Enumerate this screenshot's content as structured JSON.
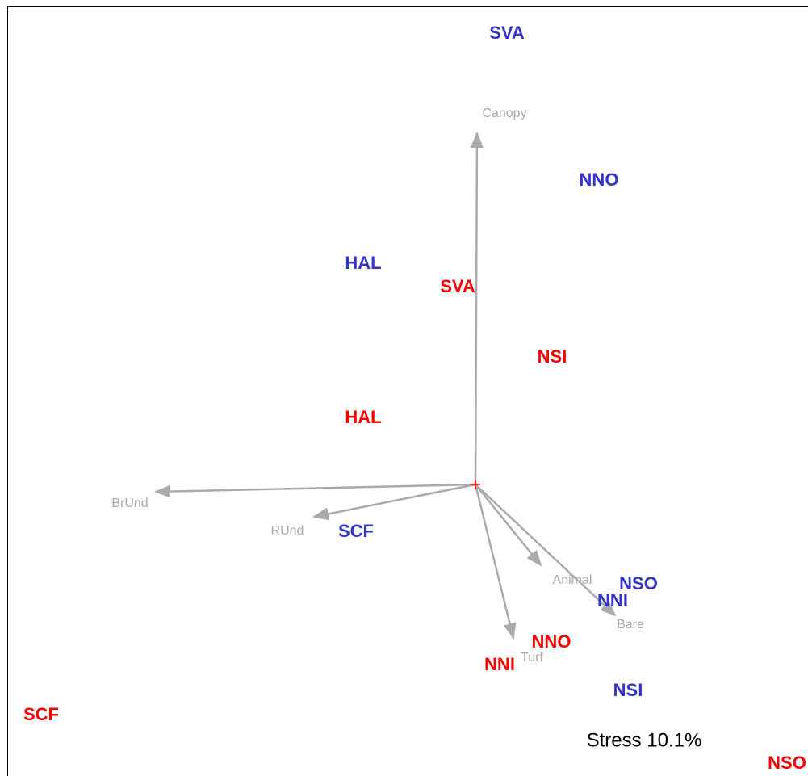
{
  "sites": [
    {
      "label": "SVA",
      "color": "#3333cc"
    },
    {
      "label": "NNO",
      "color": "#3333cc"
    },
    {
      "label": "HAL",
      "color": "#3333cc"
    },
    {
      "label": "SCF",
      "color": "#3333cc"
    },
    {
      "label": "NSO",
      "color": "#3333cc"
    },
    {
      "label": "NNI",
      "color": "#3333cc"
    },
    {
      "label": "NSI",
      "color": "#3333cc"
    },
    {
      "label": "SVA",
      "color": "#ff0000"
    },
    {
      "label": "NSI",
      "color": "#ff0000"
    },
    {
      "label": "HAL",
      "color": "#ff0000"
    },
    {
      "label": "NNO",
      "color": "#ff0000"
    },
    {
      "label": "NNI",
      "color": "#ff0000"
    },
    {
      "label": "SCF",
      "color": "#ff0000"
    },
    {
      "label": "NSO",
      "color": "#ff0000"
    }
  ],
  "vectors": [
    {
      "label": "Canopy"
    },
    {
      "label": "BrUnd"
    },
    {
      "label": "RUnd"
    },
    {
      "label": "Animal"
    },
    {
      "label": "Bare"
    },
    {
      "label": "Turf"
    }
  ],
  "vector_color": "#aaaaaa",
  "stress": "Stress 10.1%"
}
